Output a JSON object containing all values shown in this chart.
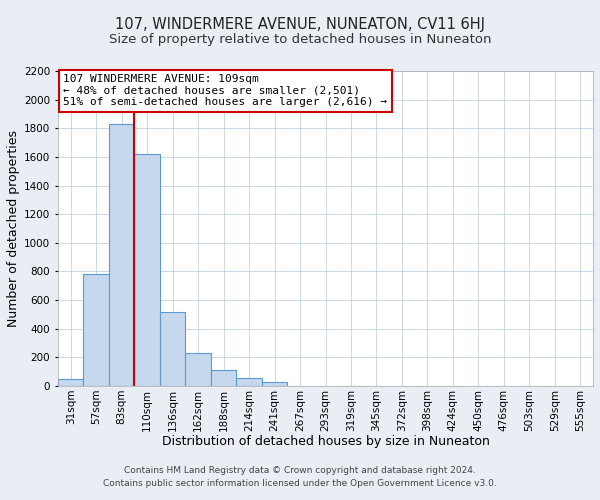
{
  "title": "107, WINDERMERE AVENUE, NUNEATON, CV11 6HJ",
  "subtitle": "Size of property relative to detached houses in Nuneaton",
  "xlabel": "Distribution of detached houses by size in Nuneaton",
  "ylabel": "Number of detached properties",
  "bar_labels": [
    "31sqm",
    "57sqm",
    "83sqm",
    "110sqm",
    "136sqm",
    "162sqm",
    "188sqm",
    "214sqm",
    "241sqm",
    "267sqm",
    "293sqm",
    "319sqm",
    "345sqm",
    "372sqm",
    "398sqm",
    "424sqm",
    "450sqm",
    "476sqm",
    "503sqm",
    "529sqm",
    "555sqm"
  ],
  "bar_values": [
    50,
    780,
    1830,
    1620,
    520,
    230,
    110,
    55,
    25,
    0,
    0,
    0,
    0,
    0,
    0,
    0,
    0,
    0,
    0,
    0,
    0
  ],
  "bar_color": "#c5d8ed",
  "bar_edge_color": "#5b9bd5",
  "ylim": [
    0,
    2200
  ],
  "yticks": [
    0,
    200,
    400,
    600,
    800,
    1000,
    1200,
    1400,
    1600,
    1800,
    2000,
    2200
  ],
  "vline_color": "#cc0000",
  "vline_x": 2.5,
  "annotation_line1": "107 WINDERMERE AVENUE: 109sqm",
  "annotation_line2": "← 48% of detached houses are smaller (2,501)",
  "annotation_line3": "51% of semi-detached houses are larger (2,616) →",
  "footer_line1": "Contains HM Land Registry data © Crown copyright and database right 2024.",
  "footer_line2": "Contains public sector information licensed under the Open Government Licence v3.0.",
  "bg_color": "#e8eef4",
  "plot_bg_color": "#ffffff",
  "title_fontsize": 10.5,
  "subtitle_fontsize": 9.5,
  "axis_label_fontsize": 9,
  "tick_fontsize": 7.5,
  "footer_fontsize": 6.5
}
